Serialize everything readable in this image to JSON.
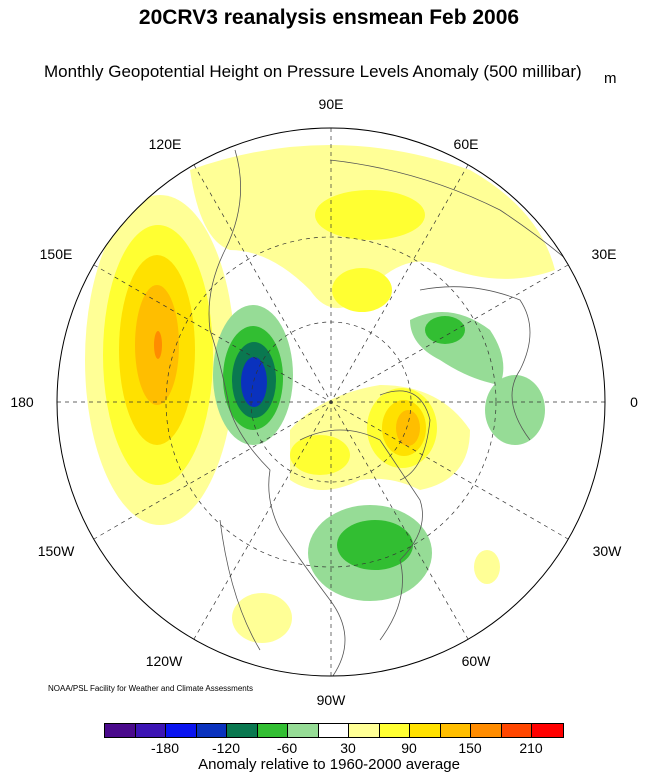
{
  "title": "20CRV3 reanalysis ensmean Feb 2006",
  "subtitle": "Monthly Geopotential Height on Pressure Levels Anomaly (500 millibar)",
  "units": "m",
  "credit": "NOAA/PSL Facility for Weather and Climate Assessments",
  "longitude_labels": [
    "90E",
    "60E",
    "30E",
    "0",
    "30W",
    "60W",
    "90W",
    "120W",
    "150W",
    "180",
    "150E",
    "120E"
  ],
  "colorbar": {
    "title": "Anomaly relative to 1960-2000 average",
    "colors": [
      "#4a0a8c",
      "#3c14b4",
      "#0a14f0",
      "#0a32be",
      "#0a7850",
      "#32be32",
      "#96dc96",
      "#ffffff",
      "#ffff96",
      "#ffff32",
      "#ffe100",
      "#ffbe00",
      "#ff8c00",
      "#ff4600",
      "#ff0000"
    ],
    "levels": [
      -210,
      -180,
      -150,
      -120,
      -90,
      -60,
      -30,
      30,
      60,
      90,
      120,
      150,
      180,
      210
    ],
    "tick_labels": [
      "-180",
      "-120",
      "-60",
      "30",
      "90",
      "150",
      "210"
    ]
  }
}
